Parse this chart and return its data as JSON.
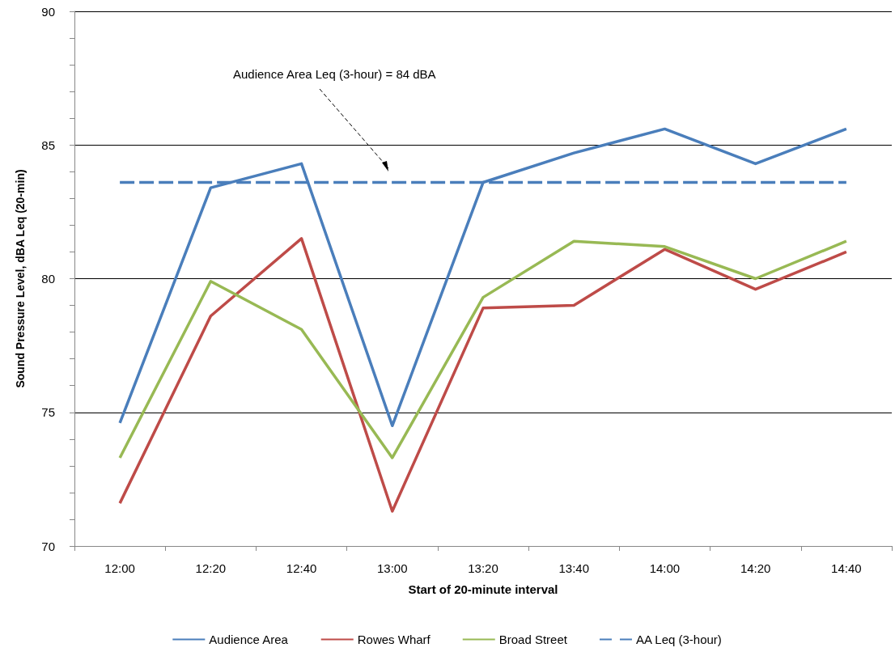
{
  "chart_data": {
    "type": "line",
    "xlabel": "Start of 20-minute interval",
    "ylabel": "Sound Pressure Level, dBA Leq (20-min)",
    "categories": [
      "12:00",
      "12:20",
      "12:40",
      "13:00",
      "13:20",
      "13:40",
      "14:00",
      "14:20",
      "14:40"
    ],
    "series": [
      {
        "name": "Audience Area",
        "color": "#4a7ebb",
        "values": [
          74.6,
          83.4,
          84.3,
          74.5,
          83.6,
          84.7,
          85.6,
          84.3,
          85.6
        ]
      },
      {
        "name": "Rowes Wharf",
        "color": "#be4b48",
        "values": [
          71.6,
          78.6,
          81.5,
          71.3,
          78.9,
          79.0,
          81.1,
          79.6,
          81.0
        ]
      },
      {
        "name": "Broad Street",
        "color": "#98b954",
        "values": [
          73.3,
          79.9,
          78.1,
          73.3,
          79.3,
          81.4,
          81.2,
          80.0,
          81.4
        ]
      },
      {
        "name": "AA Leq (3-hour)",
        "color": "#4a7ebb",
        "line_style": "dashed",
        "values": [
          83.6,
          83.6,
          83.6,
          83.6,
          83.6,
          83.6,
          83.6,
          83.6,
          83.6
        ]
      }
    ],
    "annotations": [
      "Audience Area Leq (3-hour) = 84 dBA"
    ],
    "ylim": [
      70,
      90
    ],
    "yticks": [
      70,
      75,
      80,
      85,
      90
    ],
    "grid": "y",
    "legend": "bottom",
    "marker": "none",
    "line_style": "solid"
  }
}
